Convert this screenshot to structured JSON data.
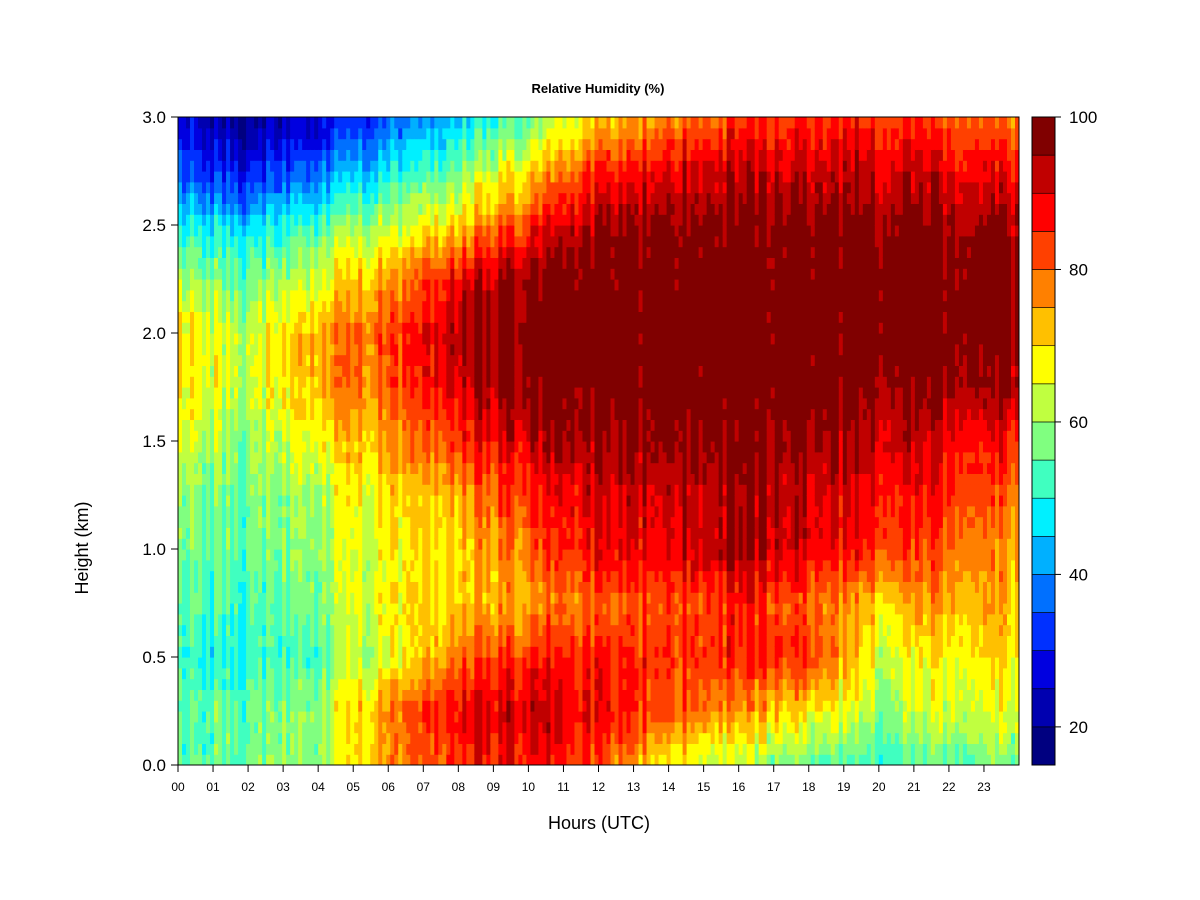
{
  "chart_data": {
    "type": "heatmap",
    "title": "Relative Humidity (%)",
    "xlabel": "Hours (UTC)",
    "ylabel": "Height (km)",
    "x_ticks": [
      "00",
      "01",
      "02",
      "03",
      "04",
      "05",
      "06",
      "07",
      "08",
      "09",
      "10",
      "11",
      "12",
      "13",
      "14",
      "15",
      "16",
      "17",
      "18",
      "19",
      "20",
      "21",
      "22",
      "23"
    ],
    "y_ticks": [
      "0.0",
      "0.5",
      "1.0",
      "1.5",
      "2.0",
      "2.5",
      "3.0"
    ],
    "xlim": [
      0,
      24
    ],
    "ylim": [
      0.0,
      3.0
    ],
    "colorbar": {
      "min": 15,
      "max": 100,
      "step": 5,
      "tick_values": [
        20,
        40,
        60,
        80,
        100
      ],
      "tick_labels": [
        "20",
        "40",
        "60",
        "80",
        "100"
      ],
      "colors": [
        "#000080",
        "#0000B0",
        "#0000E0",
        "#0030FF",
        "#0070FF",
        "#00B0FF",
        "#00F0FF",
        "#40FFC0",
        "#80FF80",
        "#C0FF40",
        "#FFFF00",
        "#FFC000",
        "#FF8000",
        "#FF4000",
        "#FF0000",
        "#C00000",
        "#800000"
      ]
    },
    "x_hours": [
      0,
      2,
      4,
      6,
      8,
      10,
      12,
      14,
      16,
      18,
      20,
      22,
      24
    ],
    "heights_km": [
      0.0,
      0.25,
      0.5,
      0.75,
      1.0,
      1.25,
      1.5,
      1.75,
      2.0,
      2.25,
      2.5,
      2.75,
      3.0
    ],
    "rh_percent": [
      [
        55,
        55,
        60,
        75,
        85,
        88,
        80,
        68,
        60,
        55,
        52,
        55,
        57
      ],
      [
        55,
        55,
        60,
        78,
        90,
        92,
        88,
        82,
        75,
        70,
        60,
        65,
        65
      ],
      [
        52,
        50,
        55,
        65,
        80,
        85,
        85,
        85,
        85,
        85,
        65,
        68,
        70
      ],
      [
        55,
        52,
        58,
        68,
        72,
        75,
        80,
        82,
        85,
        80,
        72,
        75,
        72
      ],
      [
        58,
        55,
        60,
        68,
        72,
        80,
        88,
        90,
        95,
        90,
        85,
        80,
        75
      ],
      [
        60,
        55,
        62,
        70,
        75,
        85,
        90,
        92,
        95,
        92,
        88,
        85,
        78
      ],
      [
        65,
        58,
        68,
        75,
        85,
        92,
        95,
        97,
        98,
        96,
        92,
        90,
        85
      ],
      [
        70,
        62,
        75,
        80,
        92,
        98,
        99,
        100,
        100,
        100,
        98,
        96,
        95
      ],
      [
        70,
        62,
        75,
        82,
        95,
        99,
        100,
        100,
        100,
        100,
        100,
        99,
        98
      ],
      [
        62,
        55,
        65,
        75,
        90,
        97,
        99,
        100,
        100,
        100,
        100,
        99,
        98
      ],
      [
        50,
        45,
        55,
        62,
        72,
        85,
        95,
        98,
        98,
        98,
        98,
        96,
        95
      ],
      [
        35,
        28,
        38,
        48,
        58,
        70,
        85,
        90,
        92,
        92,
        92,
        90,
        88
      ],
      [
        28,
        18,
        25,
        35,
        45,
        55,
        70,
        78,
        82,
        85,
        85,
        82,
        78
      ]
    ]
  }
}
